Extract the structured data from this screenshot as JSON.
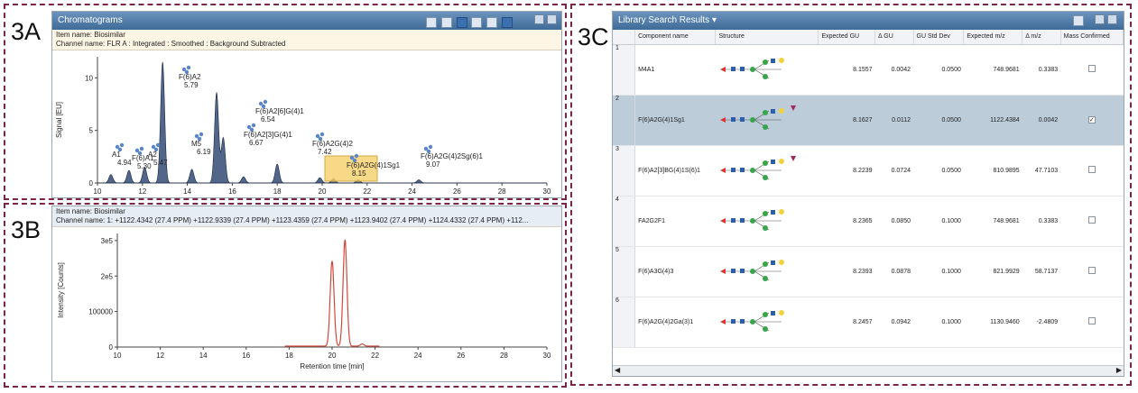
{
  "labels": {
    "a": "3A",
    "b": "3B",
    "c": "3C"
  },
  "chromatograms": {
    "title": "Chromatograms",
    "item_name": "Item name: Biosimilar",
    "channel_name": "Channel name: FLR A : Integrated : Smoothed : Background Subtracted",
    "chart_data": {
      "type": "line",
      "ylabel": "Signal [EU]",
      "xlim": [
        10,
        30
      ],
      "ylim": [
        0,
        12
      ],
      "x_ticks": [
        "10",
        "12",
        "14",
        "16",
        "18",
        "20",
        "22",
        "24",
        "26",
        "28",
        "30"
      ],
      "y_ticks": [
        "0",
        "5",
        "10"
      ],
      "peaks": [
        {
          "x": 10.6,
          "h": 0.8
        },
        {
          "x": 11.4,
          "h": 1.2
        },
        {
          "x": 12.1,
          "h": 1.5
        },
        {
          "x": 12.9,
          "h": 11.5
        },
        {
          "x": 14.2,
          "h": 1.3
        },
        {
          "x": 15.3,
          "h": 8.6
        },
        {
          "x": 15.6,
          "h": 4.3
        },
        {
          "x": 16.5,
          "h": 0.6
        },
        {
          "x": 18.0,
          "h": 1.8
        },
        {
          "x": 19.9,
          "h": 0.5
        },
        {
          "x": 20.5,
          "h": 0.4
        },
        {
          "x": 21.6,
          "h": 0.3
        },
        {
          "x": 24.3,
          "h": 0.3
        }
      ],
      "peak_labels": [
        {
          "name": "A1",
          "rt": "4.94"
        },
        {
          "name": "F(6)A1",
          "rt": "5.30"
        },
        {
          "name": "A2",
          "rt": "5.47"
        },
        {
          "name": "F(6)A2",
          "rt": "5.79"
        },
        {
          "name": "M5",
          "rt": "6.19"
        },
        {
          "name": "F(6)A2[6]G(4)1",
          "rt": "6.54"
        },
        {
          "name": "F(6)A2[3]G(4)1",
          "rt": "6.67"
        },
        {
          "name": "F(6)A2G(4)2",
          "rt": "7.42"
        },
        {
          "name": "F(6)A2G(4)1Sg1",
          "rt": "8.15"
        },
        {
          "name": "F(6)A2G(4)2Sg(6)1",
          "rt": "9.07"
        }
      ]
    }
  },
  "mass_chromatogram": {
    "item_name": "Item name: Biosimilar",
    "channel_name": "Channel name: 1: +1122.4342 (27.4 PPM) +1122.9339 (27.4 PPM) +1123.4359 (27.4 PPM) +1123.9402 (27.4 PPM) +1124.4332 (27.4 PPM) +112...",
    "chart_data": {
      "type": "line",
      "xlabel": "Retention time [min]",
      "ylabel": "Intensity [Counts]",
      "xlim": [
        10,
        30
      ],
      "ylim": [
        0,
        320000
      ],
      "x_ticks": [
        "10",
        "12",
        "14",
        "16",
        "18",
        "20",
        "22",
        "24",
        "26",
        "28",
        "30"
      ],
      "y_ticks": [
        "0",
        "100000",
        "2e5",
        "3e5"
      ],
      "peaks": [
        {
          "x": 20.0,
          "h": 240000
        },
        {
          "x": 20.6,
          "h": 300000
        },
        {
          "x": 21.4,
          "h": 6000
        }
      ],
      "range": [
        17.8,
        22.2
      ]
    }
  },
  "library": {
    "title": "Library Search Results",
    "columns": [
      "Component name",
      "Structure",
      "Expected GU",
      "Δ GU",
      "GU Std Dev",
      "Expected m/z",
      "Δ m/z",
      "Mass Confirmed"
    ],
    "rows": [
      {
        "n": "1",
        "name": "M4A1",
        "gu": "8.1557",
        "dgu": "0.0042",
        "sd": "0.0500",
        "mz": "748.9681",
        "dmz": "0.3383",
        "confirmed": false
      },
      {
        "n": "2",
        "name": "F(6)A2G(4)1Sg1",
        "gu": "8.1627",
        "dgu": "0.0112",
        "sd": "0.0500",
        "mz": "1122.4384",
        "dmz": "0.0042",
        "confirmed": true
      },
      {
        "n": "3",
        "name": "F(6)A2[3]BG(4)1S(6)1",
        "gu": "8.2239",
        "dgu": "0.0724",
        "sd": "0.0500",
        "mz": "810.9895",
        "dmz": "47.7103",
        "confirmed": false
      },
      {
        "n": "4",
        "name": "FA2G2F1",
        "gu": "8.2365",
        "dgu": "0.0850",
        "sd": "0.1000",
        "mz": "748.9681",
        "dmz": "0.3383",
        "confirmed": false
      },
      {
        "n": "5",
        "name": "F(6)A3G(4)3",
        "gu": "8.2393",
        "dgu": "0.0878",
        "sd": "0.1000",
        "mz": "821.9929",
        "dmz": "58.7137",
        "confirmed": false
      },
      {
        "n": "6",
        "name": "F(6)A2G(4)2Ga(3)1",
        "gu": "8.2457",
        "dgu": "0.0942",
        "sd": "0.1000",
        "mz": "1130.9460",
        "dmz": "-2.4809",
        "confirmed": false
      }
    ]
  },
  "colors": {
    "frame": "#7a2648",
    "peak_fill": "#27406b",
    "trace": "#d04a3c",
    "title_bar": "#4f7aa6",
    "selected_row": "#bcccd9",
    "highlight": "#f5cf6a"
  }
}
